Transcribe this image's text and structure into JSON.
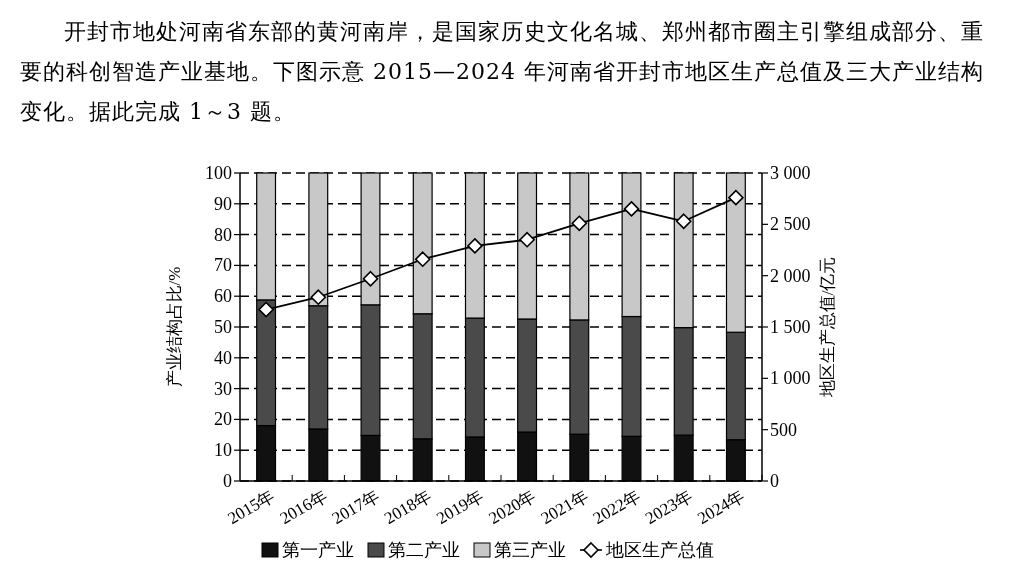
{
  "chart_data": {
    "type": "bar",
    "title": "开封市地处河南省东部的黄河南岸，是国家历史文化名城、郑州都市圈主引擎组成部分、重要的科创智造产业基地。下图示意 2015—2024 年河南省开封市地区生产总值及三大产业结构变化。据此完成 1～3 题。",
    "categories": [
      "2015年",
      "2016年",
      "2017年",
      "2018年",
      "2019年",
      "2020年",
      "2021年",
      "2022年",
      "2023年",
      "2024年"
    ],
    "stacked": true,
    "series": [
      {
        "name": "第一产业",
        "color": "#111111",
        "values": [
          18.0,
          16.9,
          14.8,
          13.7,
          14.3,
          15.9,
          15.2,
          14.5,
          14.9,
          13.4
        ]
      },
      {
        "name": "第二产业",
        "color": "#4a4a4a",
        "values": [
          40.8,
          40.0,
          42.4,
          40.6,
          38.6,
          36.7,
          37.1,
          38.9,
          34.9,
          34.9
        ]
      },
      {
        "name": "第三产业",
        "color": "#c8c8c8",
        "values": [
          41.2,
          43.1,
          42.8,
          45.7,
          47.1,
          47.4,
          47.7,
          46.6,
          50.2,
          51.7
        ]
      },
      {
        "name": "地区生产总值",
        "type": "line",
        "axis": "y2",
        "color": "#000000",
        "marker": "diamond",
        "values": [
          1670,
          1790,
          1970,
          2160,
          2290,
          2350,
          2510,
          2650,
          2530,
          2760
        ]
      }
    ],
    "ylabel": "产业结构占比/%",
    "y2label": "地区生产总值/亿元",
    "ylim": [
      0,
      100
    ],
    "yticks": [
      0,
      10,
      20,
      30,
      40,
      50,
      60,
      70,
      80,
      90,
      100
    ],
    "y2lim": [
      0,
      3000
    ],
    "y2ticks": [
      0,
      {
        "value": 500,
        "label": "500"
      },
      {
        "value": 1000,
        "label": "1 000"
      },
      {
        "value": 1500,
        "label": "1 500"
      },
      {
        "value": 2000,
        "label": "2 000"
      },
      {
        "value": 2500,
        "label": "2 500"
      },
      {
        "value": 3000,
        "label": "3 000"
      }
    ],
    "grid": "y",
    "legend": "bottom"
  }
}
